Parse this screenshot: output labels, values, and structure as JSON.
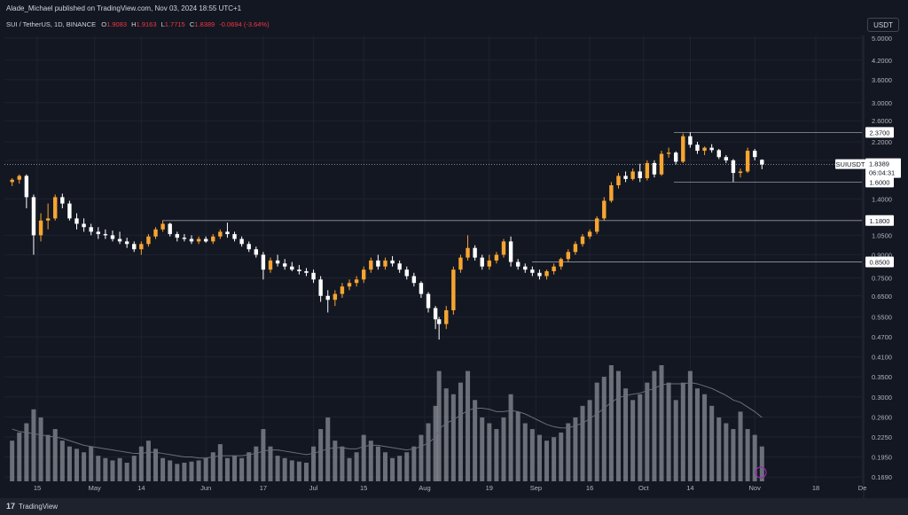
{
  "header": {
    "published": "Alade_Michael published on TradingView.com, Nov 03, 2024 18:55 UTC+1"
  },
  "legend": {
    "symbol": "SUI / TetherUS, 1D, BINANCE",
    "o_label": "O",
    "o": "1.9083",
    "h_label": "H",
    "h": "1.9163",
    "l_label": "L",
    "l": "1.7715",
    "c_label": "C",
    "c": "1.8389",
    "change": "-0.0694 (-3.64%)"
  },
  "currency_button": "USDT",
  "footer": {
    "brand": "TradingView",
    "logo": "17"
  },
  "colors": {
    "up": "#f7a531",
    "down": "#ffffff",
    "volume": "#8a8d96",
    "line": "#5d606b",
    "price_tag": "#ffffff"
  },
  "chart_data": {
    "type": "candlestick",
    "scale": "log",
    "y_ticks": [
      "5.0000",
      "4.2000",
      "3.6000",
      "3.0000",
      "2.6000",
      "2.2000",
      "1.9000",
      "1.4000",
      "1.0500",
      "0.9000",
      "0.7500",
      "0.6500",
      "0.5500",
      "0.4700",
      "0.4100",
      "0.3500",
      "0.3000",
      "0.2600",
      "0.2250",
      "0.1950",
      "0.1690"
    ],
    "x_ticks": [
      {
        "label": "15",
        "date": "2024-04-15"
      },
      {
        "label": "May",
        "date": "2024-05-01"
      },
      {
        "label": "14",
        "date": "2024-05-14"
      },
      {
        "label": "Jun",
        "date": "2024-06-01"
      },
      {
        "label": "17",
        "date": "2024-06-17"
      },
      {
        "label": "Jul",
        "date": "2024-07-01"
      },
      {
        "label": "15",
        "date": "2024-07-15"
      },
      {
        "label": "Aug",
        "date": "2024-08-01"
      },
      {
        "label": "19",
        "date": "2024-08-19"
      },
      {
        "label": "Sep",
        "date": "2024-09-01"
      },
      {
        "label": "16",
        "date": "2024-09-16"
      },
      {
        "label": "Oct",
        "date": "2024-10-01"
      },
      {
        "label": "14",
        "date": "2024-10-14"
      },
      {
        "label": "Nov",
        "date": "2024-11-01"
      },
      {
        "label": "18",
        "date": "2024-11-18"
      },
      {
        "label": "De",
        "date": "2024-12-01"
      }
    ],
    "levels": [
      {
        "value": 2.37,
        "label": "2.3700"
      },
      {
        "value": 1.6,
        "label": "1.6000"
      },
      {
        "value": 1.18,
        "label": "1.1800"
      },
      {
        "value": 0.85,
        "label": "0.8500"
      }
    ],
    "last_price": {
      "value": 1.8389,
      "symbol": "SUIUSDT",
      "price": "1.8389",
      "countdown": "06:04:31"
    },
    "candles": [
      {
        "date": "2024-04-08",
        "o": 1.6,
        "h": 1.65,
        "l": 1.55,
        "c": 1.63
      },
      {
        "date": "2024-04-10",
        "o": 1.63,
        "h": 1.7,
        "l": 1.58,
        "c": 1.68
      },
      {
        "date": "2024-04-12",
        "o": 1.68,
        "h": 1.7,
        "l": 1.3,
        "c": 1.42
      },
      {
        "date": "2024-04-14",
        "o": 1.42,
        "h": 1.45,
        "l": 0.9,
        "c": 1.05
      },
      {
        "date": "2024-04-16",
        "o": 1.05,
        "h": 1.25,
        "l": 1.0,
        "c": 1.18
      },
      {
        "date": "2024-04-18",
        "o": 1.18,
        "h": 1.35,
        "l": 1.1,
        "c": 1.2
      },
      {
        "date": "2024-04-20",
        "o": 1.2,
        "h": 1.45,
        "l": 1.18,
        "c": 1.42
      },
      {
        "date": "2024-04-22",
        "o": 1.42,
        "h": 1.46,
        "l": 1.3,
        "c": 1.35
      },
      {
        "date": "2024-04-24",
        "o": 1.35,
        "h": 1.38,
        "l": 1.18,
        "c": 1.2
      },
      {
        "date": "2024-04-26",
        "o": 1.2,
        "h": 1.25,
        "l": 1.1,
        "c": 1.15
      },
      {
        "date": "2024-04-28",
        "o": 1.15,
        "h": 1.2,
        "l": 1.08,
        "c": 1.12
      },
      {
        "date": "2024-04-30",
        "o": 1.12,
        "h": 1.15,
        "l": 1.05,
        "c": 1.08
      },
      {
        "date": "2024-05-02",
        "o": 1.08,
        "h": 1.12,
        "l": 1.02,
        "c": 1.06
      },
      {
        "date": "2024-05-04",
        "o": 1.06,
        "h": 1.1,
        "l": 1.02,
        "c": 1.05
      },
      {
        "date": "2024-05-06",
        "o": 1.05,
        "h": 1.09,
        "l": 1.0,
        "c": 1.02
      },
      {
        "date": "2024-05-08",
        "o": 1.02,
        "h": 1.08,
        "l": 0.98,
        "c": 1.0
      },
      {
        "date": "2024-05-10",
        "o": 1.0,
        "h": 1.03,
        "l": 0.95,
        "c": 0.98
      },
      {
        "date": "2024-05-12",
        "o": 0.98,
        "h": 1.0,
        "l": 0.92,
        "c": 0.94
      },
      {
        "date": "2024-05-14",
        "o": 0.94,
        "h": 1.0,
        "l": 0.9,
        "c": 0.98
      },
      {
        "date": "2024-05-16",
        "o": 0.98,
        "h": 1.06,
        "l": 0.96,
        "c": 1.04
      },
      {
        "date": "2024-05-18",
        "o": 1.04,
        "h": 1.12,
        "l": 1.02,
        "c": 1.1
      },
      {
        "date": "2024-05-20",
        "o": 1.1,
        "h": 1.18,
        "l": 1.08,
        "c": 1.15
      },
      {
        "date": "2024-05-22",
        "o": 1.15,
        "h": 1.16,
        "l": 1.04,
        "c": 1.06
      },
      {
        "date": "2024-05-24",
        "o": 1.06,
        "h": 1.08,
        "l": 1.0,
        "c": 1.03
      },
      {
        "date": "2024-05-26",
        "o": 1.03,
        "h": 1.06,
        "l": 1.0,
        "c": 1.02
      },
      {
        "date": "2024-05-28",
        "o": 1.02,
        "h": 1.05,
        "l": 0.98,
        "c": 1.0
      },
      {
        "date": "2024-05-30",
        "o": 1.0,
        "h": 1.04,
        "l": 0.98,
        "c": 1.02
      },
      {
        "date": "2024-06-01",
        "o": 1.02,
        "h": 1.04,
        "l": 0.99,
        "c": 1.0
      },
      {
        "date": "2024-06-03",
        "o": 1.0,
        "h": 1.06,
        "l": 0.98,
        "c": 1.04
      },
      {
        "date": "2024-06-05",
        "o": 1.04,
        "h": 1.1,
        "l": 1.02,
        "c": 1.08
      },
      {
        "date": "2024-06-07",
        "o": 1.08,
        "h": 1.16,
        "l": 1.03,
        "c": 1.06
      },
      {
        "date": "2024-06-09",
        "o": 1.06,
        "h": 1.08,
        "l": 1.0,
        "c": 1.02
      },
      {
        "date": "2024-06-11",
        "o": 1.02,
        "h": 1.04,
        "l": 0.96,
        "c": 0.98
      },
      {
        "date": "2024-06-13",
        "o": 0.98,
        "h": 1.0,
        "l": 0.92,
        "c": 0.94
      },
      {
        "date": "2024-06-15",
        "o": 0.94,
        "h": 0.96,
        "l": 0.88,
        "c": 0.9
      },
      {
        "date": "2024-06-17",
        "o": 0.9,
        "h": 0.92,
        "l": 0.74,
        "c": 0.8
      },
      {
        "date": "2024-06-19",
        "o": 0.8,
        "h": 0.88,
        "l": 0.78,
        "c": 0.86
      },
      {
        "date": "2024-06-21",
        "o": 0.86,
        "h": 0.9,
        "l": 0.82,
        "c": 0.84
      },
      {
        "date": "2024-06-23",
        "o": 0.84,
        "h": 0.87,
        "l": 0.8,
        "c": 0.82
      },
      {
        "date": "2024-06-25",
        "o": 0.82,
        "h": 0.85,
        "l": 0.79,
        "c": 0.8
      },
      {
        "date": "2024-06-27",
        "o": 0.8,
        "h": 0.83,
        "l": 0.77,
        "c": 0.79
      },
      {
        "date": "2024-06-29",
        "o": 0.79,
        "h": 0.81,
        "l": 0.76,
        "c": 0.78
      },
      {
        "date": "2024-07-01",
        "o": 0.78,
        "h": 0.8,
        "l": 0.72,
        "c": 0.74
      },
      {
        "date": "2024-07-03",
        "o": 0.74,
        "h": 0.76,
        "l": 0.62,
        "c": 0.65
      },
      {
        "date": "2024-07-05",
        "o": 0.65,
        "h": 0.68,
        "l": 0.57,
        "c": 0.63
      },
      {
        "date": "2024-07-07",
        "o": 0.63,
        "h": 0.68,
        "l": 0.6,
        "c": 0.66
      },
      {
        "date": "2024-07-09",
        "o": 0.66,
        "h": 0.72,
        "l": 0.64,
        "c": 0.7
      },
      {
        "date": "2024-07-11",
        "o": 0.7,
        "h": 0.74,
        "l": 0.68,
        "c": 0.72
      },
      {
        "date": "2024-07-13",
        "o": 0.72,
        "h": 0.76,
        "l": 0.7,
        "c": 0.74
      },
      {
        "date": "2024-07-15",
        "o": 0.74,
        "h": 0.82,
        "l": 0.72,
        "c": 0.8
      },
      {
        "date": "2024-07-17",
        "o": 0.8,
        "h": 0.88,
        "l": 0.78,
        "c": 0.86
      },
      {
        "date": "2024-07-19",
        "o": 0.86,
        "h": 0.9,
        "l": 0.8,
        "c": 0.82
      },
      {
        "date": "2024-07-21",
        "o": 0.82,
        "h": 0.88,
        "l": 0.8,
        "c": 0.86
      },
      {
        "date": "2024-07-23",
        "o": 0.86,
        "h": 0.89,
        "l": 0.82,
        "c": 0.84
      },
      {
        "date": "2024-07-25",
        "o": 0.84,
        "h": 0.86,
        "l": 0.78,
        "c": 0.8
      },
      {
        "date": "2024-07-27",
        "o": 0.8,
        "h": 0.82,
        "l": 0.74,
        "c": 0.76
      },
      {
        "date": "2024-07-29",
        "o": 0.76,
        "h": 0.78,
        "l": 0.7,
        "c": 0.72
      },
      {
        "date": "2024-07-31",
        "o": 0.72,
        "h": 0.73,
        "l": 0.64,
        "c": 0.66
      },
      {
        "date": "2024-08-02",
        "o": 0.66,
        "h": 0.67,
        "l": 0.57,
        "c": 0.59
      },
      {
        "date": "2024-08-04",
        "o": 0.59,
        "h": 0.6,
        "l": 0.5,
        "c": 0.54
      },
      {
        "date": "2024-08-05",
        "o": 0.54,
        "h": 0.55,
        "l": 0.46,
        "c": 0.52
      },
      {
        "date": "2024-08-07",
        "o": 0.52,
        "h": 0.6,
        "l": 0.5,
        "c": 0.58
      },
      {
        "date": "2024-08-09",
        "o": 0.58,
        "h": 0.82,
        "l": 0.56,
        "c": 0.8
      },
      {
        "date": "2024-08-11",
        "o": 0.8,
        "h": 0.9,
        "l": 0.78,
        "c": 0.88
      },
      {
        "date": "2024-08-13",
        "o": 0.88,
        "h": 1.05,
        "l": 0.86,
        "c": 0.95
      },
      {
        "date": "2024-08-15",
        "o": 0.95,
        "h": 0.97,
        "l": 0.86,
        "c": 0.88
      },
      {
        "date": "2024-08-17",
        "o": 0.88,
        "h": 0.9,
        "l": 0.8,
        "c": 0.82
      },
      {
        "date": "2024-08-19",
        "o": 0.82,
        "h": 0.9,
        "l": 0.8,
        "c": 0.86
      },
      {
        "date": "2024-08-21",
        "o": 0.86,
        "h": 0.92,
        "l": 0.84,
        "c": 0.9
      },
      {
        "date": "2024-08-23",
        "o": 0.9,
        "h": 1.02,
        "l": 0.88,
        "c": 1.0
      },
      {
        "date": "2024-08-25",
        "o": 1.0,
        "h": 1.04,
        "l": 0.82,
        "c": 0.85
      },
      {
        "date": "2024-08-27",
        "o": 0.85,
        "h": 0.87,
        "l": 0.8,
        "c": 0.82
      },
      {
        "date": "2024-08-29",
        "o": 0.82,
        "h": 0.84,
        "l": 0.78,
        "c": 0.8
      },
      {
        "date": "2024-08-31",
        "o": 0.8,
        "h": 0.82,
        "l": 0.76,
        "c": 0.78
      },
      {
        "date": "2024-09-02",
        "o": 0.78,
        "h": 0.8,
        "l": 0.74,
        "c": 0.76
      },
      {
        "date": "2024-09-04",
        "o": 0.76,
        "h": 0.8,
        "l": 0.74,
        "c": 0.79
      },
      {
        "date": "2024-09-06",
        "o": 0.79,
        "h": 0.84,
        "l": 0.77,
        "c": 0.82
      },
      {
        "date": "2024-09-08",
        "o": 0.82,
        "h": 0.88,
        "l": 0.8,
        "c": 0.87
      },
      {
        "date": "2024-09-10",
        "o": 0.87,
        "h": 0.94,
        "l": 0.85,
        "c": 0.92
      },
      {
        "date": "2024-09-12",
        "o": 0.92,
        "h": 1.0,
        "l": 0.9,
        "c": 0.98
      },
      {
        "date": "2024-09-14",
        "o": 0.98,
        "h": 1.06,
        "l": 0.96,
        "c": 1.04
      },
      {
        "date": "2024-09-16",
        "o": 1.04,
        "h": 1.1,
        "l": 1.02,
        "c": 1.08
      },
      {
        "date": "2024-09-18",
        "o": 1.08,
        "h": 1.22,
        "l": 1.06,
        "c": 1.2
      },
      {
        "date": "2024-09-20",
        "o": 1.2,
        "h": 1.42,
        "l": 1.18,
        "c": 1.38
      },
      {
        "date": "2024-09-22",
        "o": 1.38,
        "h": 1.6,
        "l": 1.36,
        "c": 1.56
      },
      {
        "date": "2024-09-24",
        "o": 1.56,
        "h": 1.72,
        "l": 1.52,
        "c": 1.68
      },
      {
        "date": "2024-09-26",
        "o": 1.68,
        "h": 1.74,
        "l": 1.6,
        "c": 1.64
      },
      {
        "date": "2024-09-28",
        "o": 1.64,
        "h": 1.78,
        "l": 1.62,
        "c": 1.74
      },
      {
        "date": "2024-09-30",
        "o": 1.74,
        "h": 1.85,
        "l": 1.6,
        "c": 1.65
      },
      {
        "date": "2024-10-02",
        "o": 1.65,
        "h": 1.9,
        "l": 1.62,
        "c": 1.86
      },
      {
        "date": "2024-10-04",
        "o": 1.86,
        "h": 1.9,
        "l": 1.66,
        "c": 1.7
      },
      {
        "date": "2024-10-06",
        "o": 1.7,
        "h": 2.05,
        "l": 1.68,
        "c": 2.0
      },
      {
        "date": "2024-10-08",
        "o": 2.0,
        "h": 2.1,
        "l": 1.94,
        "c": 2.02
      },
      {
        "date": "2024-10-10",
        "o": 2.02,
        "h": 2.04,
        "l": 1.84,
        "c": 1.88
      },
      {
        "date": "2024-10-12",
        "o": 1.88,
        "h": 2.35,
        "l": 1.86,
        "c": 2.3
      },
      {
        "date": "2024-10-14",
        "o": 2.3,
        "h": 2.37,
        "l": 2.1,
        "c": 2.15
      },
      {
        "date": "2024-10-16",
        "o": 2.15,
        "h": 2.2,
        "l": 2.0,
        "c": 2.05
      },
      {
        "date": "2024-10-18",
        "o": 2.05,
        "h": 2.12,
        "l": 1.98,
        "c": 2.1
      },
      {
        "date": "2024-10-20",
        "o": 2.1,
        "h": 2.16,
        "l": 2.02,
        "c": 2.06
      },
      {
        "date": "2024-10-22",
        "o": 2.06,
        "h": 2.08,
        "l": 1.92,
        "c": 1.95
      },
      {
        "date": "2024-10-24",
        "o": 1.95,
        "h": 1.98,
        "l": 1.86,
        "c": 1.9
      },
      {
        "date": "2024-10-26",
        "o": 1.9,
        "h": 1.92,
        "l": 1.6,
        "c": 1.72
      },
      {
        "date": "2024-10-28",
        "o": 1.72,
        "h": 1.78,
        "l": 1.66,
        "c": 1.74
      },
      {
        "date": "2024-10-30",
        "o": 1.74,
        "h": 2.1,
        "l": 1.72,
        "c": 2.05
      },
      {
        "date": "2024-11-01",
        "o": 2.05,
        "h": 2.08,
        "l": 1.9,
        "c": 1.95
      },
      {
        "date": "2024-11-03",
        "o": 1.9083,
        "h": 1.9163,
        "l": 1.7715,
        "c": 1.8389
      }
    ],
    "volume": [
      0.35,
      0.42,
      0.5,
      0.62,
      0.55,
      0.4,
      0.45,
      0.35,
      0.3,
      0.28,
      0.25,
      0.3,
      0.22,
      0.2,
      0.18,
      0.2,
      0.16,
      0.22,
      0.3,
      0.35,
      0.28,
      0.2,
      0.18,
      0.15,
      0.16,
      0.17,
      0.18,
      0.2,
      0.25,
      0.32,
      0.2,
      0.22,
      0.2,
      0.25,
      0.3,
      0.45,
      0.3,
      0.22,
      0.2,
      0.18,
      0.17,
      0.16,
      0.3,
      0.45,
      0.55,
      0.35,
      0.3,
      0.2,
      0.25,
      0.4,
      0.35,
      0.3,
      0.25,
      0.2,
      0.22,
      0.25,
      0.3,
      0.4,
      0.5,
      0.65,
      0.95,
      0.8,
      0.75,
      0.85,
      0.95,
      0.7,
      0.55,
      0.5,
      0.45,
      0.55,
      0.75,
      0.6,
      0.5,
      0.45,
      0.4,
      0.35,
      0.38,
      0.42,
      0.5,
      0.55,
      0.65,
      0.7,
      0.85,
      0.9,
      1.0,
      0.95,
      0.8,
      0.7,
      0.75,
      0.85,
      0.95,
      1.0,
      0.85,
      0.7,
      0.85,
      0.95,
      0.8,
      0.75,
      0.65,
      0.55,
      0.5,
      0.45,
      0.6,
      0.45,
      0.4,
      0.3
    ],
    "volume_ma": [
      0.45,
      0.43,
      0.42,
      0.41,
      0.4,
      0.39,
      0.38,
      0.37,
      0.35,
      0.33,
      0.31,
      0.3,
      0.29,
      0.28,
      0.27,
      0.26,
      0.25,
      0.24,
      0.24,
      0.25,
      0.25,
      0.24,
      0.23,
      0.22,
      0.21,
      0.21,
      0.2,
      0.2,
      0.21,
      0.22,
      0.22,
      0.22,
      0.22,
      0.23,
      0.24,
      0.26,
      0.27,
      0.27,
      0.26,
      0.25,
      0.24,
      0.23,
      0.24,
      0.26,
      0.28,
      0.29,
      0.29,
      0.28,
      0.28,
      0.3,
      0.31,
      0.31,
      0.3,
      0.29,
      0.28,
      0.27,
      0.28,
      0.3,
      0.33,
      0.38,
      0.45,
      0.5,
      0.53,
      0.57,
      0.61,
      0.63,
      0.63,
      0.62,
      0.6,
      0.6,
      0.61,
      0.6,
      0.58,
      0.55,
      0.52,
      0.49,
      0.47,
      0.46,
      0.46,
      0.48,
      0.5,
      0.54,
      0.58,
      0.63,
      0.68,
      0.72,
      0.74,
      0.75,
      0.76,
      0.78,
      0.8,
      0.83,
      0.84,
      0.84,
      0.84,
      0.85,
      0.84,
      0.82,
      0.8,
      0.77,
      0.74,
      0.7,
      0.68,
      0.64,
      0.6,
      0.55
    ]
  }
}
